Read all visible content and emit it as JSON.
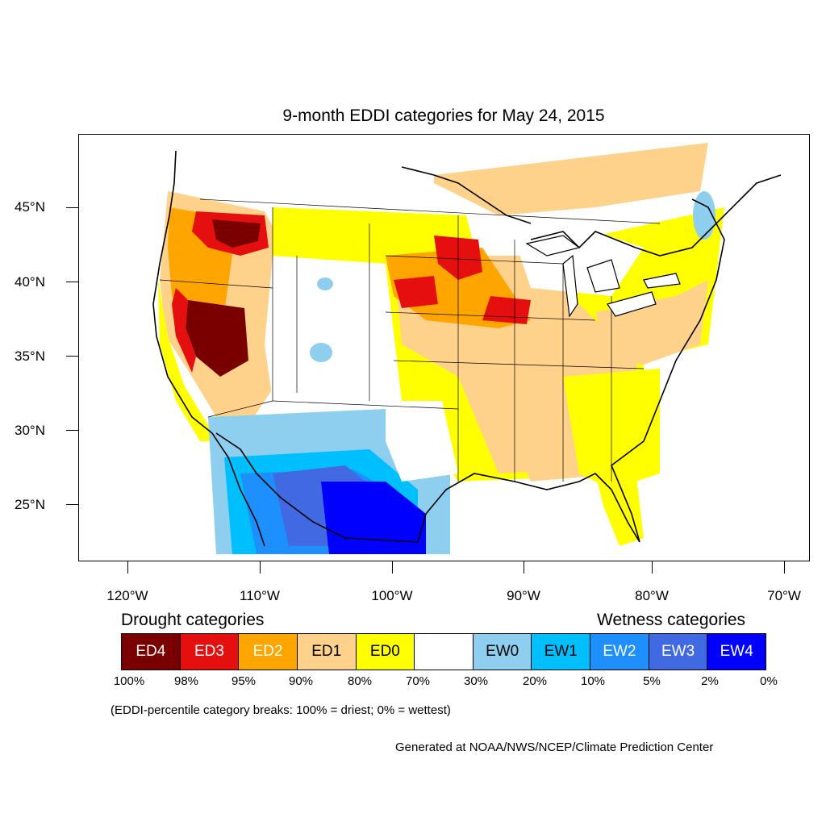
{
  "title": "9-month EDDI categories for May 24, 2015",
  "latitude_labels": [
    "45°N",
    "40°N",
    "35°N",
    "30°N",
    "25°N"
  ],
  "longitude_labels": [
    "120°W",
    "110°W",
    "100°W",
    "90°W",
    "80°W",
    "70°W"
  ],
  "legend": {
    "drought_heading": "Drought categories",
    "wetness_heading": "Wetness categories",
    "categories": [
      {
        "label": "ED4",
        "color": "#7a0000",
        "text_color": "#ffffff"
      },
      {
        "label": "ED3",
        "color": "#e50f0f",
        "text_color": "#ffffff"
      },
      {
        "label": "ED2",
        "color": "#ffa500",
        "text_color": "#ffffff"
      },
      {
        "label": "ED1",
        "color": "#ffd28c",
        "text_color": "#000000"
      },
      {
        "label": "ED0",
        "color": "#ffff00",
        "text_color": "#000000"
      },
      {
        "label": "",
        "color": "#ffffff",
        "text_color": "#000000"
      },
      {
        "label": "EW0",
        "color": "#8ecff0",
        "text_color": "#000000"
      },
      {
        "label": "EW1",
        "color": "#00bfff",
        "text_color": "#000000"
      },
      {
        "label": "EW2",
        "color": "#1e8fff",
        "text_color": "#ffffff"
      },
      {
        "label": "EW3",
        "color": "#4169e1",
        "text_color": "#ffffff"
      },
      {
        "label": "EW4",
        "color": "#0000ff",
        "text_color": "#ffffff"
      }
    ],
    "percentiles": [
      "100%",
      "98%",
      "95%",
      "90%",
      "80%",
      "70%",
      "30%",
      "20%",
      "10%",
      "5%",
      "2%",
      "0%"
    ]
  },
  "breaks_note": "(EDDI-percentile category breaks: 100% = driest; 0% = wettest)",
  "credit": "Generated at NOAA/NWS/NCEP/Climate Prediction Center"
}
